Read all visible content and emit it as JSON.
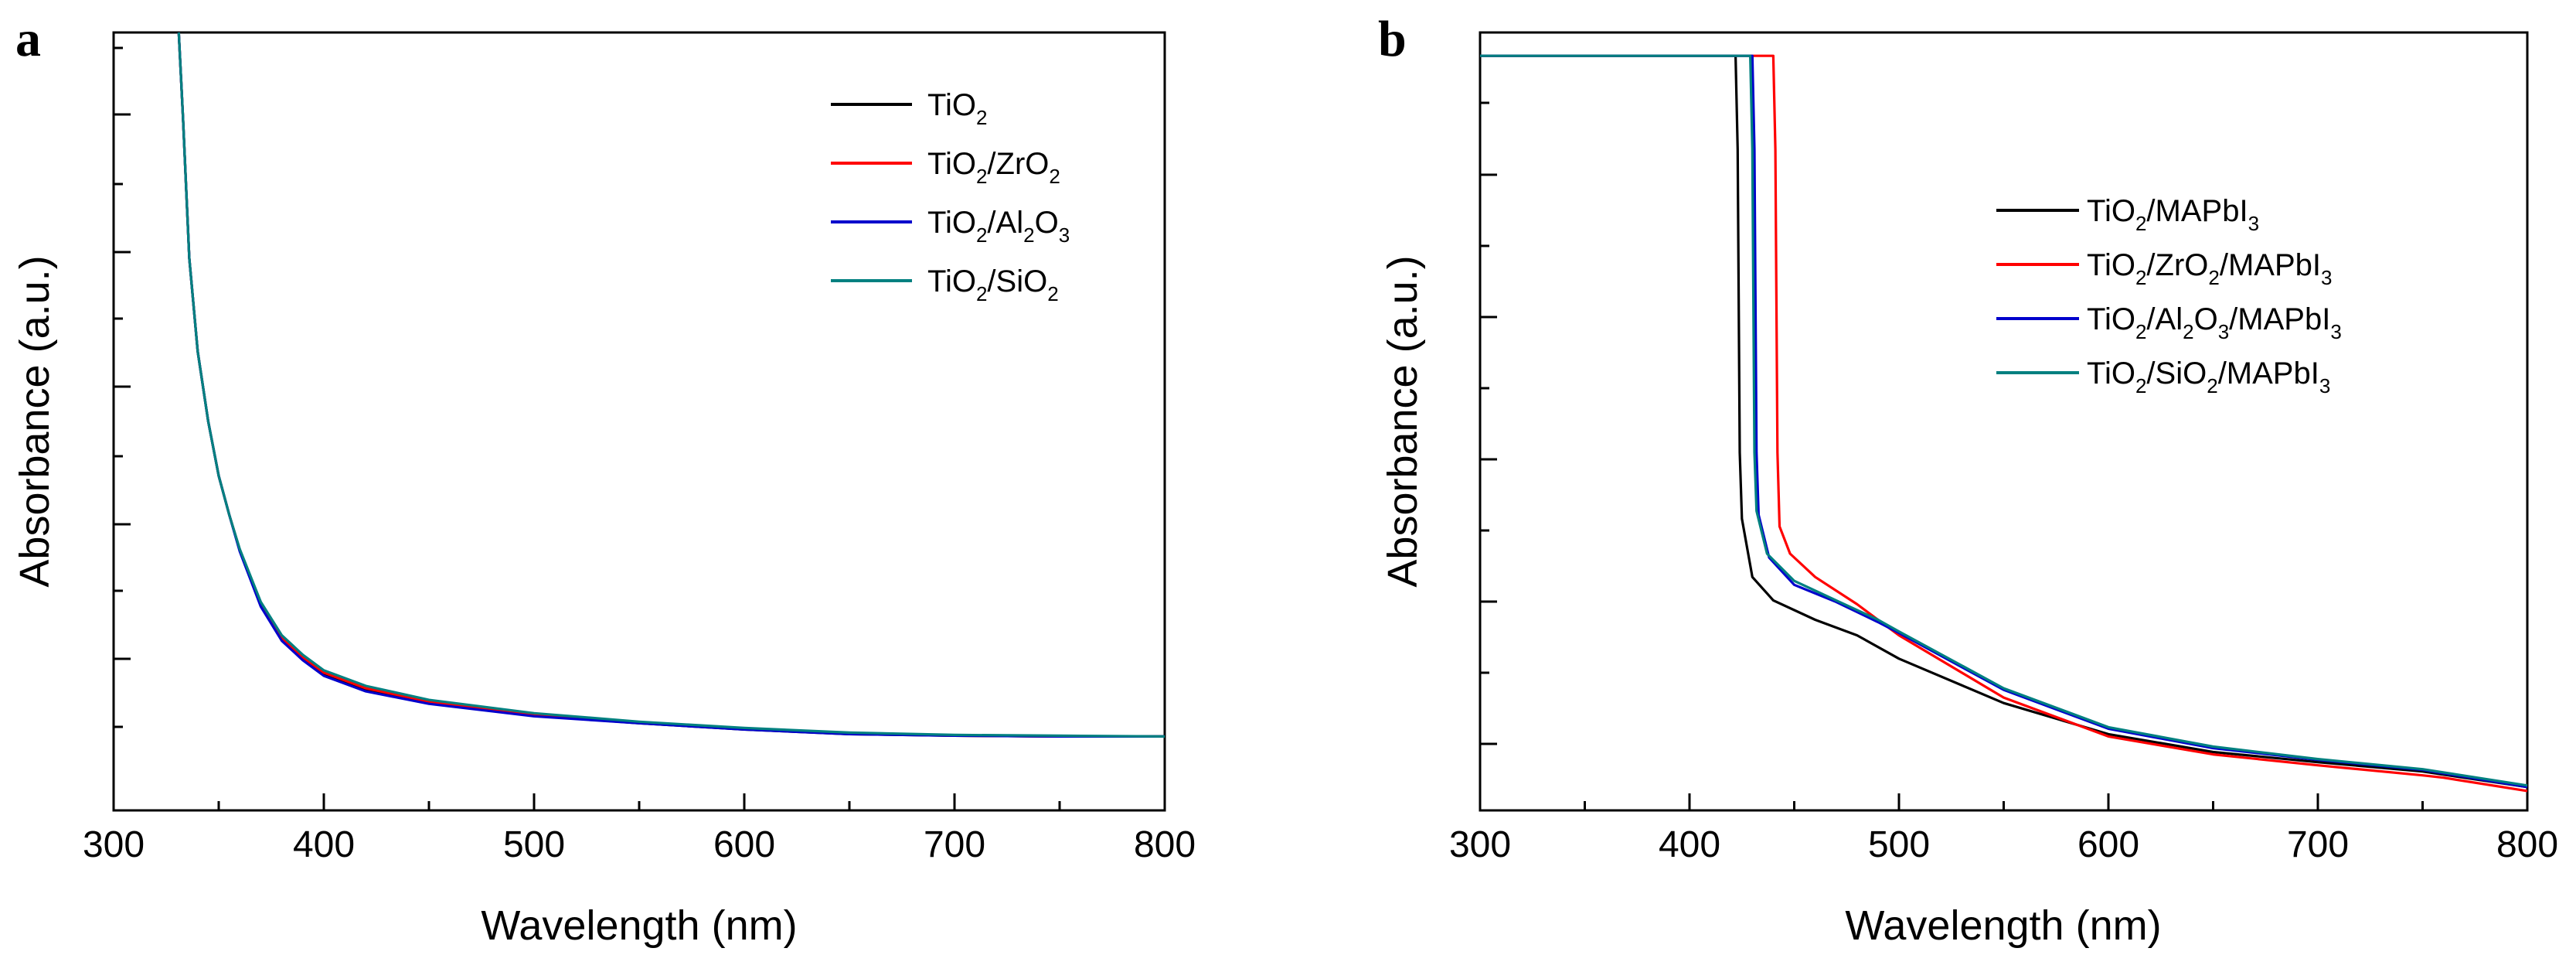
{
  "figure": {
    "panels": [
      {
        "letter": "a",
        "xlabel": "Wavelength (nm)",
        "ylabel": "Absorbance (a.u.)",
        "legend": [
          {
            "parts": [
              [
                "TiO",
                ""
              ],
              [
                "2",
                "sub"
              ]
            ],
            "color": "#000000"
          },
          {
            "parts": [
              [
                "TiO",
                ""
              ],
              [
                "2",
                "sub"
              ],
              [
                "/ZrO",
                ""
              ],
              [
                "2",
                "sub"
              ]
            ],
            "color": "#ff0000"
          },
          {
            "parts": [
              [
                "TiO",
                ""
              ],
              [
                "2",
                "sub"
              ],
              [
                "/Al",
                ""
              ],
              [
                "2",
                "sub"
              ],
              [
                "O",
                ""
              ],
              [
                "3",
                "sub"
              ]
            ],
            "color": "#0000cc"
          },
          {
            "parts": [
              [
                "TiO",
                ""
              ],
              [
                "2",
                "sub"
              ],
              [
                "/SiO",
                ""
              ],
              [
                "2",
                "sub"
              ]
            ],
            "color": "#008080"
          }
        ]
      },
      {
        "letter": "b",
        "xlabel": "Wavelength (nm)",
        "ylabel": "Absorbance (a.u.)",
        "legend": [
          {
            "parts": [
              [
                "TiO",
                ""
              ],
              [
                "2",
                "sub"
              ],
              [
                "/MAPbI",
                ""
              ],
              [
                "3",
                "sub"
              ]
            ],
            "color": "#000000"
          },
          {
            "parts": [
              [
                "TiO",
                ""
              ],
              [
                "2",
                "sub"
              ],
              [
                "/ZrO",
                ""
              ],
              [
                "2",
                "sub"
              ],
              [
                "/MAPbI",
                ""
              ],
              [
                "3",
                "sub"
              ]
            ],
            "color": "#ff0000"
          },
          {
            "parts": [
              [
                "TiO",
                ""
              ],
              [
                "2",
                "sub"
              ],
              [
                "/Al",
                ""
              ],
              [
                "2",
                "sub"
              ],
              [
                "O",
                ""
              ],
              [
                "3",
                "sub"
              ],
              [
                "/MAPbI",
                ""
              ],
              [
                "3",
                "sub"
              ]
            ],
            "color": "#0000cc"
          },
          {
            "parts": [
              [
                "TiO",
                ""
              ],
              [
                "2",
                "sub"
              ],
              [
                "/SiO",
                ""
              ],
              [
                "2",
                "sub"
              ],
              [
                "/MAPbI",
                ""
              ],
              [
                "3",
                "sub"
              ]
            ],
            "color": "#008080"
          }
        ]
      }
    ]
  },
  "chart_data": [
    {
      "type": "line",
      "panel": "a",
      "xlabel": "Wavelength (nm)",
      "ylabel": "Absorbance (a.u.)",
      "xlim": [
        300,
        800
      ],
      "ylim": [
        0,
        10
      ],
      "xticks": [
        300,
        400,
        500,
        600,
        700,
        800
      ],
      "yticks": [],
      "y_unitless": true,
      "legend_position": "top-right",
      "series": [
        {
          "name": "TiO2",
          "color": "#000000",
          "x": [
            331,
            333,
            336,
            340,
            345,
            350,
            355,
            360,
            370,
            380,
            390,
            400,
            420,
            450,
            500,
            550,
            600,
            650,
            700,
            750,
            800
          ],
          "y": [
            10.5,
            8.9,
            7.1,
            5.9,
            5.0,
            4.3,
            3.8,
            3.35,
            2.65,
            2.2,
            1.95,
            1.75,
            1.55,
            1.38,
            1.22,
            1.12,
            1.04,
            0.98,
            0.96,
            0.95,
            0.95
          ]
        },
        {
          "name": "TiO2/ZrO2",
          "color": "#ff0000",
          "x": [
            331,
            333,
            336,
            340,
            345,
            350,
            355,
            360,
            370,
            380,
            390,
            400,
            420,
            450,
            500,
            550,
            600,
            650,
            700,
            750,
            800
          ],
          "y": [
            10.5,
            8.9,
            7.1,
            5.9,
            5.0,
            4.3,
            3.8,
            3.35,
            2.66,
            2.22,
            1.97,
            1.77,
            1.57,
            1.4,
            1.23,
            1.13,
            1.05,
            0.99,
            0.96,
            0.95,
            0.95
          ]
        },
        {
          "name": "TiO2/Al2O3",
          "color": "#0000cc",
          "x": [
            331,
            333,
            336,
            340,
            345,
            350,
            355,
            360,
            370,
            380,
            390,
            400,
            420,
            450,
            500,
            550,
            600,
            650,
            700,
            750,
            800
          ],
          "y": [
            10.5,
            8.9,
            7.1,
            5.9,
            5.0,
            4.3,
            3.8,
            3.33,
            2.62,
            2.18,
            1.93,
            1.73,
            1.53,
            1.37,
            1.21,
            1.12,
            1.04,
            0.98,
            0.96,
            0.95,
            0.95
          ]
        },
        {
          "name": "TiO2/SiO2",
          "color": "#008080",
          "x": [
            331,
            333,
            336,
            340,
            345,
            350,
            355,
            360,
            370,
            380,
            390,
            400,
            420,
            450,
            500,
            550,
            600,
            650,
            700,
            750,
            800
          ],
          "y": [
            10.5,
            8.9,
            7.1,
            5.9,
            5.0,
            4.3,
            3.8,
            3.36,
            2.68,
            2.25,
            2.0,
            1.8,
            1.6,
            1.42,
            1.25,
            1.14,
            1.06,
            1.0,
            0.97,
            0.96,
            0.95
          ]
        }
      ]
    },
    {
      "type": "line",
      "panel": "b",
      "xlabel": "Wavelength (nm)",
      "ylabel": "Absorbance (a.u.)",
      "xlim": [
        300,
        800
      ],
      "ylim": [
        0,
        10
      ],
      "xticks": [
        300,
        400,
        500,
        600,
        700,
        800
      ],
      "yticks": [],
      "y_unitless": true,
      "legend_position": "top-right",
      "series": [
        {
          "name": "TiO2/MAPbI3",
          "color": "#000000",
          "x": [
            300,
            400,
            422,
            423,
            424,
            425,
            430,
            440,
            460,
            480,
            500,
            550,
            600,
            650,
            700,
            750,
            800
          ],
          "y": [
            9.7,
            9.7,
            9.7,
            8.5,
            4.6,
            3.75,
            3.0,
            2.7,
            2.45,
            2.25,
            1.95,
            1.38,
            0.98,
            0.75,
            0.62,
            0.5,
            0.3
          ]
        },
        {
          "name": "TiO2/ZrO2/MAPbI3",
          "color": "#ff0000",
          "x": [
            300,
            400,
            440,
            441,
            442,
            443,
            448,
            460,
            480,
            500,
            550,
            600,
            650,
            700,
            750,
            760,
            800
          ],
          "y": [
            9.7,
            9.7,
            9.7,
            8.5,
            4.6,
            3.65,
            3.3,
            3.0,
            2.65,
            2.25,
            1.45,
            0.95,
            0.72,
            0.58,
            0.45,
            0.42,
            0.25
          ]
        },
        {
          "name": "TiO2/Al2O3/MAPbI3",
          "color": "#0000cc",
          "x": [
            300,
            400,
            430,
            431,
            432,
            433,
            438,
            450,
            470,
            490,
            500,
            550,
            600,
            650,
            700,
            750,
            800
          ],
          "y": [
            9.7,
            9.7,
            9.7,
            8.5,
            4.6,
            3.8,
            3.25,
            2.9,
            2.68,
            2.42,
            2.28,
            1.55,
            1.05,
            0.8,
            0.65,
            0.52,
            0.3
          ]
        },
        {
          "name": "TiO2/SiO2/MAPbI3",
          "color": "#008080",
          "x": [
            300,
            400,
            429,
            430,
            431,
            432,
            437,
            450,
            470,
            490,
            500,
            550,
            600,
            650,
            700,
            750,
            800
          ],
          "y": [
            9.7,
            9.7,
            9.7,
            8.5,
            4.6,
            3.85,
            3.3,
            2.95,
            2.7,
            2.45,
            2.3,
            1.57,
            1.07,
            0.82,
            0.66,
            0.53,
            0.32
          ]
        }
      ]
    }
  ]
}
